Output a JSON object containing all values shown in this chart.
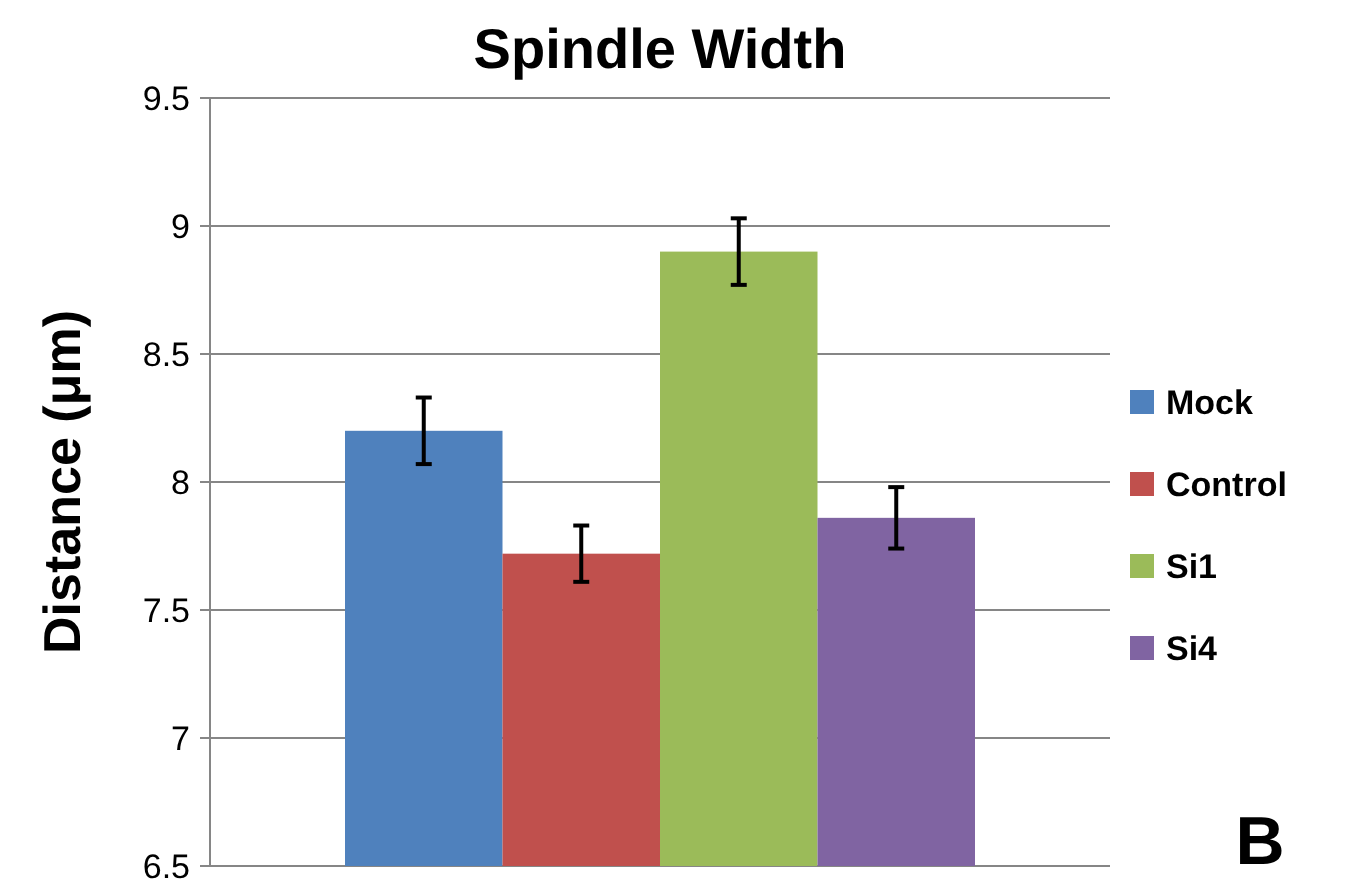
{
  "chart_data": {
    "type": "bar",
    "title": "Spindle Width",
    "ylabel": "Distance (μm)",
    "categories": [
      null
    ],
    "series": [
      {
        "name": "Mock",
        "color": "#4f81bd",
        "values": [
          8.2
        ],
        "errors": [
          0.13
        ]
      },
      {
        "name": "Control",
        "color": "#c0504d",
        "values": [
          7.72
        ],
        "errors": [
          0.11
        ]
      },
      {
        "name": "Si1",
        "color": "#9bbb59",
        "values": [
          8.9
        ],
        "errors": [
          0.13
        ]
      },
      {
        "name": "Si4",
        "color": "#8064a2",
        "values": [
          7.86
        ],
        "errors": [
          0.12
        ]
      }
    ],
    "ylim": [
      6.5,
      9.5
    ],
    "yticks": [
      6.5,
      7,
      7.5,
      8,
      8.5,
      9,
      9.5
    ],
    "grid": "y",
    "legend": "right",
    "annotations": [
      "B"
    ]
  }
}
